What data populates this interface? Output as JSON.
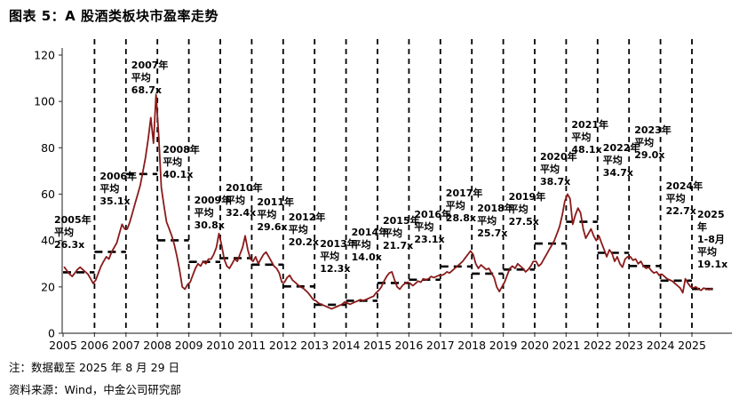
{
  "title": "图表 5：A 股酒类板块市盈率走势",
  "notes": {
    "data_note": "注：数据截至 2025 年 8 月 29 日",
    "source_note": "资料来源：Wind，中金公司研究部"
  },
  "chart_data": {
    "type": "line",
    "title": "A股酒类板块市盈率走势",
    "series_name": "A股酒类板块市盈率(倍)",
    "xlabel": "",
    "ylabel": "",
    "ylim": [
      0,
      120
    ],
    "ytick_interval": 20,
    "y_ticks": [
      "0",
      "20",
      "40",
      "60",
      "80",
      "100",
      "120"
    ],
    "x_ticks": [
      "2005",
      "2006",
      "2007",
      "2008",
      "2009",
      "2010",
      "2011",
      "2012",
      "2013",
      "2014",
      "2015",
      "2016",
      "2017",
      "2018",
      "2019",
      "2020",
      "2021",
      "2022",
      "2023",
      "2024",
      "2025"
    ],
    "grid": "vertical-dashed-year-dividers",
    "legend": "none",
    "line_color": "#8B1A1A",
    "divider_color": "#000000",
    "average_dash_color": "#000000",
    "unit": "x",
    "annotations": [
      {
        "year": 2005,
        "avg": 26.3,
        "lines": [
          "2005年",
          "平均",
          "26.3x"
        ],
        "label_top": 51.5
      },
      {
        "year": 2006,
        "avg": 35.1,
        "lines": [
          "2006年",
          "平均",
          "35.1x"
        ],
        "label_top": 70
      },
      {
        "year": 2007,
        "avg": 68.7,
        "lines": [
          "2007年",
          "平均",
          "68.7x"
        ],
        "label_top": 118
      },
      {
        "year": 2008,
        "avg": 40.1,
        "lines": [
          "2008年",
          "平均",
          "40.1x"
        ],
        "label_top": 81.5
      },
      {
        "year": 2009,
        "avg": 30.8,
        "lines": [
          "2009年",
          "平均",
          "30.8x"
        ],
        "label_top": 60
      },
      {
        "year": 2010,
        "avg": 32.4,
        "lines": [
          "2010年",
          "平均",
          "32.4x"
        ],
        "label_top": 65
      },
      {
        "year": 2011,
        "avg": 29.6,
        "lines": [
          "2011年",
          "平均",
          "29.6x"
        ],
        "label_top": 59
      },
      {
        "year": 2012,
        "avg": 20.2,
        "lines": [
          "2012年",
          "平均",
          "20.2x"
        ],
        "label_top": 52.5
      },
      {
        "year": 2013,
        "avg": 12.3,
        "lines": [
          "2013年",
          "平均",
          "12.3x"
        ],
        "label_top": 41
      },
      {
        "year": 2014,
        "avg": 14.0,
        "lines": [
          "2014年",
          "平均",
          "14.0x"
        ],
        "label_top": 46
      },
      {
        "year": 2015,
        "avg": 21.7,
        "lines": [
          "2015年",
          "平均",
          "21.7x"
        ],
        "label_top": 51
      },
      {
        "year": 2016,
        "avg": 23.1,
        "lines": [
          "2016年",
          "平均",
          "23.1x"
        ],
        "label_top": 53.5
      },
      {
        "year": 2017,
        "avg": 28.8,
        "lines": [
          "2017年",
          "平均",
          "28.8x"
        ],
        "label_top": 63
      },
      {
        "year": 2018,
        "avg": 25.7,
        "lines": [
          "2018年",
          "平均",
          "25.7x"
        ],
        "label_top": 56.5
      },
      {
        "year": 2019,
        "avg": 27.5,
        "lines": [
          "2019年",
          "平均",
          "27.5x"
        ],
        "label_top": 61.5
      },
      {
        "year": 2020,
        "avg": 38.7,
        "lines": [
          "2020年",
          "平均",
          "38.7x"
        ],
        "label_top": 78.5
      },
      {
        "year": 2021,
        "avg": 48.1,
        "lines": [
          "2021年",
          "平均",
          "48.1x"
        ],
        "label_top": 92.5
      },
      {
        "year": 2022,
        "avg": 34.7,
        "lines": [
          "2022年",
          "平均",
          "34.7x"
        ],
        "label_top": 82.5
      },
      {
        "year": 2023,
        "avg": 29.0,
        "lines": [
          "2023年",
          "平均",
          "29.0x"
        ],
        "label_top": 90
      },
      {
        "year": 2024,
        "avg": 22.7,
        "lines": [
          "2024年",
          "平均",
          "22.7x"
        ],
        "label_top": 66
      },
      {
        "year": 2025,
        "avg": 19.1,
        "lines": [
          "2025",
          "年",
          "1-8月",
          "平均",
          "19.1x"
        ],
        "label_top": 53.5,
        "partial_months": 8
      }
    ],
    "monthly_pe": {
      "2005": [
        28.5,
        27,
        25.5,
        24.5,
        26,
        27.5,
        28.5,
        27.5,
        26.5,
        25.5,
        23.5,
        21.5
      ],
      "2006": [
        23,
        26,
        29,
        31,
        33,
        32,
        35,
        37,
        39,
        43,
        47,
        45
      ],
      "2007": [
        45,
        48,
        52,
        56,
        60,
        64,
        70,
        76,
        84,
        93,
        82,
        103
      ],
      "2008": [
        85,
        63,
        55,
        48,
        45,
        42,
        38,
        33,
        27,
        20,
        19,
        21
      ],
      "2009": [
        22,
        25,
        28,
        30,
        29,
        31,
        30,
        32,
        32,
        34,
        37,
        43
      ],
      "2010": [
        38,
        32,
        29,
        28,
        30,
        32,
        31,
        34,
        37,
        42,
        36,
        32
      ],
      "2011": [
        31,
        33,
        30,
        32,
        34,
        35,
        33,
        31,
        29,
        28,
        26,
        22
      ],
      "2012": [
        22,
        24,
        25,
        23,
        22,
        21,
        20,
        19.5,
        18.5,
        17.5,
        16,
        14.5
      ],
      "2013": [
        14,
        13,
        12.5,
        12,
        11.5,
        11,
        10.5,
        11,
        11.5,
        12,
        12.5,
        13.5
      ],
      "2014": [
        13,
        12.5,
        13,
        13.5,
        14,
        14.5,
        14,
        14.5,
        15,
        15.5,
        16,
        17.5
      ],
      "2015": [
        18.5,
        20,
        22.5,
        24.5,
        26,
        26.5,
        23,
        20,
        19,
        20.5,
        21.5,
        22
      ],
      "2016": [
        21.5,
        20.5,
        21.5,
        22.5,
        22,
        23.5,
        23,
        23.5,
        24.5,
        24,
        24.5,
        25
      ],
      "2017": [
        25,
        25.5,
        26.5,
        26,
        27,
        28,
        29,
        30,
        31,
        32.5,
        34,
        35.5
      ],
      "2018": [
        34,
        30,
        28,
        29.5,
        28.5,
        27.5,
        28,
        26,
        24,
        20,
        18,
        20
      ],
      "2019": [
        22,
        25,
        28,
        29,
        28,
        30,
        29,
        28,
        26.5,
        27.5,
        29,
        31
      ],
      "2020": [
        31,
        29,
        30,
        32,
        34,
        36,
        38,
        40,
        43,
        46,
        51,
        57
      ],
      "2021": [
        60,
        58,
        47,
        51,
        54,
        52,
        45,
        41,
        43,
        45,
        42,
        40
      ],
      "2022": [
        42,
        39,
        36,
        33,
        36,
        34.5,
        31,
        33,
        30,
        28.5,
        32,
        33
      ],
      "2023": [
        33,
        31.5,
        32,
        30,
        31,
        29,
        28,
        28.5,
        27,
        26,
        26.5,
        25
      ],
      "2024": [
        25.5,
        24.5,
        23.5,
        23,
        22.5,
        21.5,
        20.5,
        19.5,
        17.5,
        23.5,
        21.5,
        20
      ],
      "2025": [
        19.5,
        20,
        19,
        18.5,
        19.5,
        19,
        18.8,
        19.3
      ]
    }
  }
}
